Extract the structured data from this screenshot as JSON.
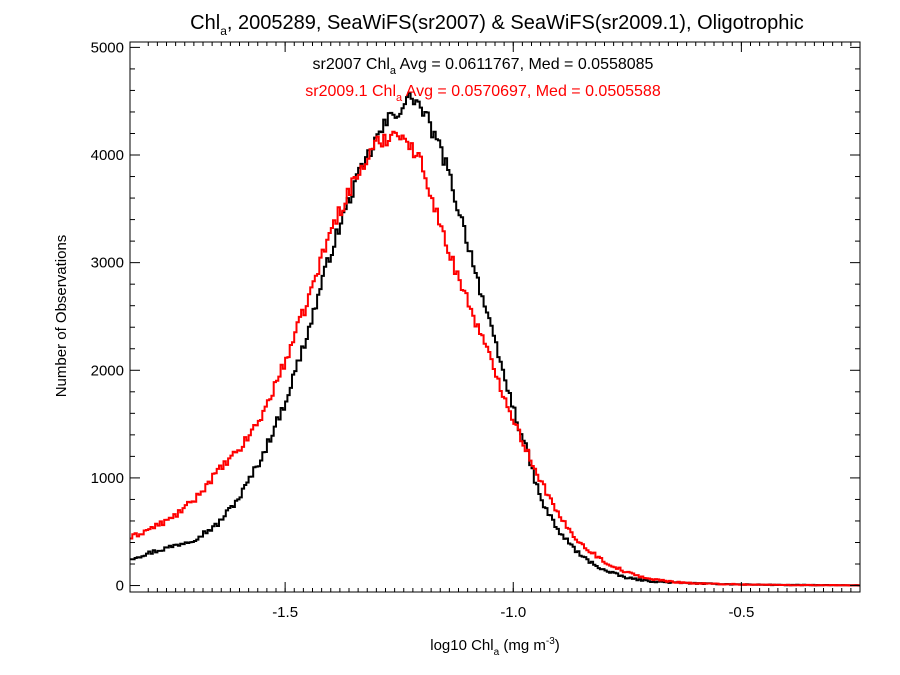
{
  "chart_data": {
    "type": "histogram-step",
    "title": {
      "prefix": "Chl",
      "subscript": "a",
      "suffix": ", 2005289, SeaWiFS(sr2007) & SeaWiFS(sr2009.1), Oligotrophic"
    },
    "xlabel": {
      "prefix": "log10 Chl",
      "subscript": "a",
      "mid": " (mg m",
      "superscript": "-3",
      "suffix": ")"
    },
    "ylabel": "Number of Observations",
    "xlim": [
      -1.84,
      -0.24
    ],
    "ylim": [
      -60,
      5050
    ],
    "x_ticks": [
      -1.5,
      -1.0,
      -0.5
    ],
    "x_tick_labels": [
      "-1.5",
      "-1.0",
      "-0.5"
    ],
    "y_ticks": [
      0,
      1000,
      2000,
      3000,
      4000,
      5000
    ],
    "y_tick_labels": [
      "0",
      "1000",
      "2000",
      "3000",
      "4000",
      "5000"
    ],
    "bin_width": 0.005,
    "annotations": [
      {
        "color": "#000000",
        "prefix": "sr2007 Chl",
        "subscript": "a",
        "suffix": " Avg = 0.0611767, Med = 0.0558085"
      },
      {
        "color": "#ff0000",
        "prefix": "sr2009.1 Chl",
        "subscript": "a",
        "suffix": " Avg = 0.0570697, Med = 0.0505588"
      }
    ],
    "series": [
      {
        "color": "#000000",
        "points": [
          [
            -1.84,
            250
          ],
          [
            -1.8,
            300
          ],
          [
            -1.75,
            360
          ],
          [
            -1.7,
            430
          ],
          [
            -1.65,
            560
          ],
          [
            -1.6,
            820
          ],
          [
            -1.55,
            1200
          ],
          [
            -1.5,
            1700
          ],
          [
            -1.45,
            2350
          ],
          [
            -1.4,
            3100
          ],
          [
            -1.35,
            3700
          ],
          [
            -1.3,
            4150
          ],
          [
            -1.27,
            4350
          ],
          [
            -1.25,
            4420
          ],
          [
            -1.22,
            4550
          ],
          [
            -1.19,
            4350
          ],
          [
            -1.17,
            4150
          ],
          [
            -1.15,
            3950
          ],
          [
            -1.12,
            3500
          ],
          [
            -1.1,
            3200
          ],
          [
            -1.05,
            2400
          ],
          [
            -1.0,
            1650
          ],
          [
            -0.97,
            1250
          ],
          [
            -0.94,
            800
          ],
          [
            -0.9,
            500
          ],
          [
            -0.85,
            270
          ],
          [
            -0.8,
            140
          ],
          [
            -0.75,
            70
          ],
          [
            -0.7,
            40
          ],
          [
            -0.65,
            28
          ],
          [
            -0.6,
            20
          ],
          [
            -0.5,
            10
          ],
          [
            -0.4,
            5
          ],
          [
            -0.24,
            2
          ]
        ]
      },
      {
        "color": "#ff0000",
        "points": [
          [
            -1.84,
            440
          ],
          [
            -1.8,
            520
          ],
          [
            -1.75,
            620
          ],
          [
            -1.7,
            790
          ],
          [
            -1.65,
            1050
          ],
          [
            -1.6,
            1260
          ],
          [
            -1.55,
            1580
          ],
          [
            -1.5,
            2080
          ],
          [
            -1.45,
            2650
          ],
          [
            -1.4,
            3300
          ],
          [
            -1.35,
            3750
          ],
          [
            -1.3,
            4100
          ],
          [
            -1.27,
            4180
          ],
          [
            -1.25,
            4230
          ],
          [
            -1.23,
            4100
          ],
          [
            -1.2,
            3920
          ],
          [
            -1.17,
            3500
          ],
          [
            -1.15,
            3200
          ],
          [
            -1.1,
            2650
          ],
          [
            -1.05,
            2100
          ],
          [
            -1.0,
            1550
          ],
          [
            -0.97,
            1250
          ],
          [
            -0.94,
            980
          ],
          [
            -0.9,
            640
          ],
          [
            -0.85,
            380
          ],
          [
            -0.8,
            220
          ],
          [
            -0.75,
            120
          ],
          [
            -0.7,
            60
          ],
          [
            -0.65,
            35
          ],
          [
            -0.6,
            20
          ],
          [
            -0.5,
            10
          ],
          [
            -0.4,
            5
          ],
          [
            -0.24,
            2
          ]
        ]
      }
    ]
  }
}
